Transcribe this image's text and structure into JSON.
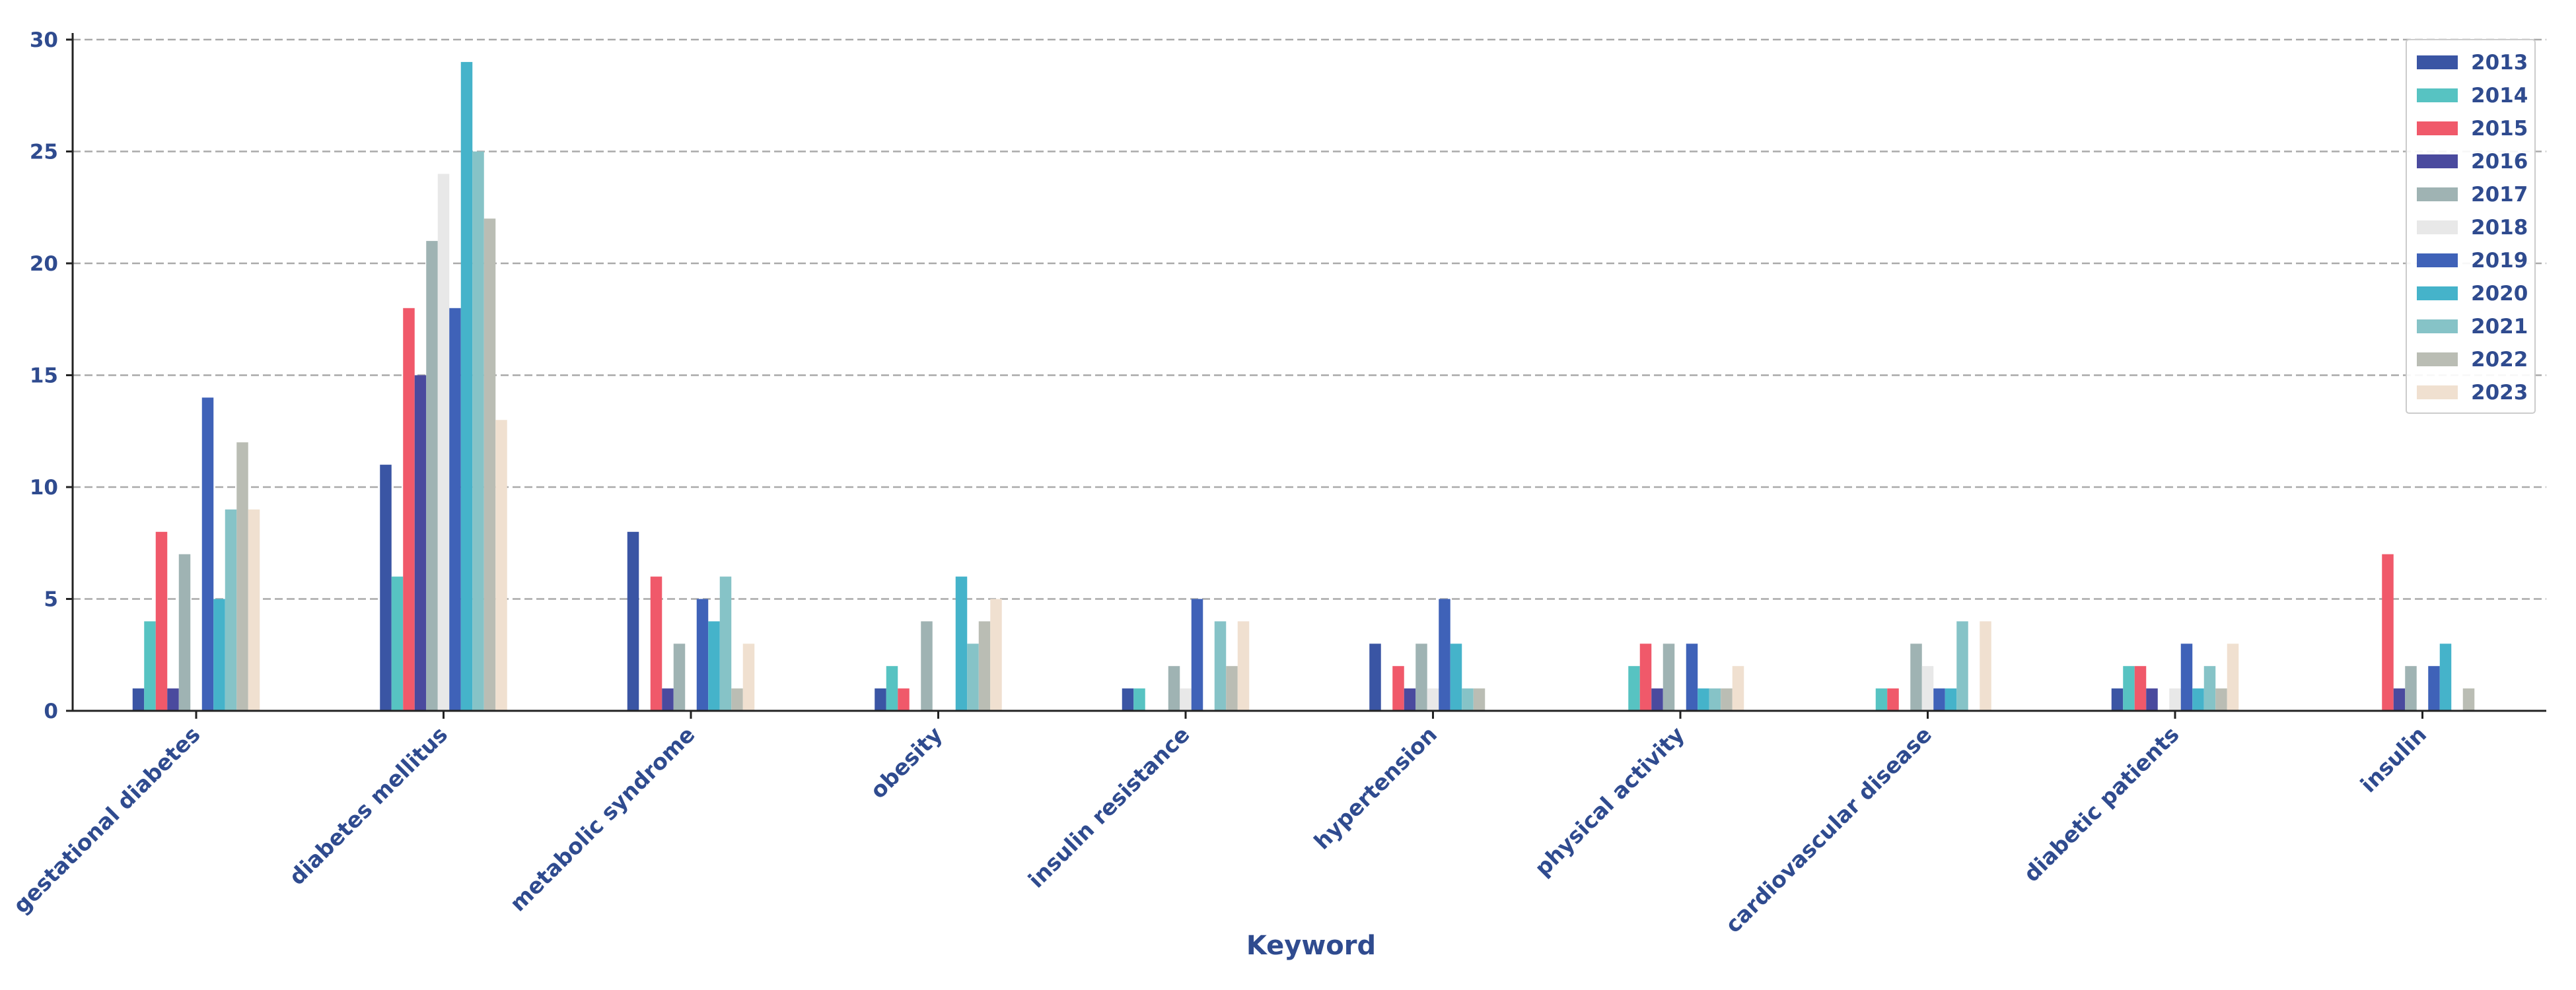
{
  "chart_data": {
    "type": "bar",
    "title": "",
    "xlabel": "Keyword",
    "ylabel": "",
    "ylim": [
      0,
      30
    ],
    "yticks": [
      0,
      5,
      10,
      15,
      20,
      25,
      30
    ],
    "grid": "horizontal dashed",
    "legend_position": "top-right",
    "categories": [
      "gestational diabetes",
      "diabetes mellitus",
      "metabolic syndrome",
      "obesity",
      "insulin resistance",
      "hypertension",
      "physical activity",
      "cardiovascular disease",
      "diabetic patients",
      "insulin"
    ],
    "series": [
      {
        "name": "2013",
        "color": "#3a55a4",
        "values": [
          1,
          11,
          8,
          1,
          1,
          3,
          0,
          0,
          1,
          0
        ]
      },
      {
        "name": "2014",
        "color": "#57c3c2",
        "values": [
          4,
          6,
          0,
          2,
          1,
          0,
          2,
          1,
          2,
          0
        ]
      },
      {
        "name": "2015",
        "color": "#f0596a",
        "values": [
          8,
          18,
          6,
          1,
          0,
          2,
          3,
          1,
          2,
          7
        ]
      },
      {
        "name": "2016",
        "color": "#4a4a9e",
        "values": [
          1,
          15,
          1,
          0,
          0,
          1,
          1,
          0,
          1,
          1
        ]
      },
      {
        "name": "2017",
        "color": "#9fb3b3",
        "values": [
          7,
          21,
          3,
          4,
          2,
          3,
          3,
          3,
          0,
          2
        ]
      },
      {
        "name": "2018",
        "color": "#e8e8e8",
        "values": [
          0,
          24,
          0,
          0,
          1,
          1,
          0,
          2,
          1,
          0
        ]
      },
      {
        "name": "2019",
        "color": "#3f62b8",
        "values": [
          14,
          18,
          5,
          0,
          5,
          5,
          3,
          1,
          3,
          2
        ]
      },
      {
        "name": "2020",
        "color": "#45b3ca",
        "values": [
          5,
          29,
          4,
          6,
          0,
          3,
          1,
          1,
          1,
          3
        ]
      },
      {
        "name": "2021",
        "color": "#86c3c7",
        "values": [
          9,
          25,
          6,
          3,
          4,
          1,
          1,
          4,
          2,
          0
        ]
      },
      {
        "name": "2022",
        "color": "#babdb4",
        "values": [
          12,
          22,
          1,
          4,
          2,
          1,
          1,
          0,
          1,
          1
        ]
      },
      {
        "name": "2023",
        "color": "#f0e0d0",
        "values": [
          9,
          13,
          3,
          5,
          4,
          0,
          2,
          4,
          3,
          0
        ]
      }
    ]
  }
}
